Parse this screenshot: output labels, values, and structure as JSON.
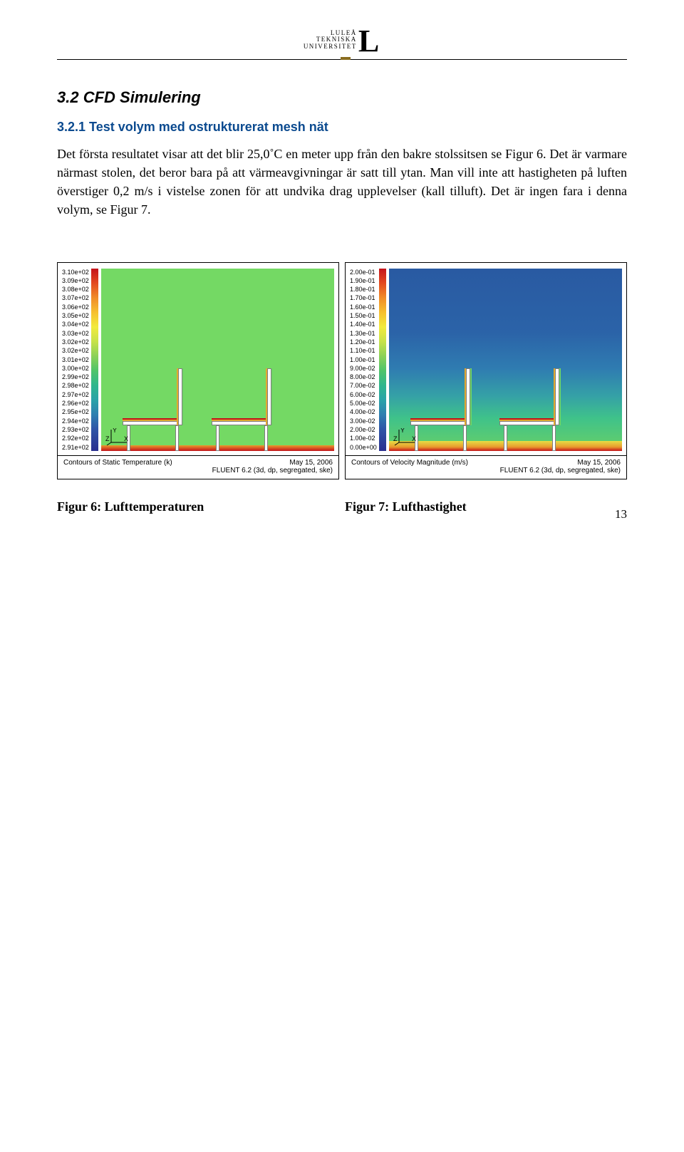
{
  "logo": {
    "line1": "LULEÅ",
    "line2": "TEKNISKA",
    "line3": "UNIVERSITET"
  },
  "section_heading": "3.2  CFD Simulering",
  "subsection_heading": "3.2.1 Test volym med ostrukturerat mesh nät",
  "body_text": "Det första resultatet visar att det blir 25,0˚C en meter upp från den bakre stolssitsen se Figur 6. Det är varmare närmast stolen, det beror bara på att värmeavgivningar är satt till ytan. Man vill inte att hastigheten på luften överstiger 0,2 m/s i vistelse zonen för att undvika drag upplevelser (kall tilluft). Det är ingen fara i denna volym, se Figur 7.",
  "figures": {
    "left": {
      "colorbar_labels": [
        "3.10e+02",
        "3.09e+02",
        "3.08e+02",
        "3.07e+02",
        "3.06e+02",
        "3.05e+02",
        "3.04e+02",
        "3.03e+02",
        "3.02e+02",
        "3.02e+02",
        "3.01e+02",
        "3.00e+02",
        "2.99e+02",
        "2.98e+02",
        "2.97e+02",
        "2.96e+02",
        "2.95e+02",
        "2.94e+02",
        "2.93e+02",
        "2.92e+02",
        "2.91e+02"
      ],
      "bg_color": "#74d964",
      "footer_left": "Contours of Static Temperature (k)",
      "footer_right_line1": "May 15, 2006",
      "footer_right_line2": "FLUENT 6.2 (3d, dp, segregated, ske)",
      "caption": "Figur 6: Lufttemperaturen"
    },
    "right": {
      "colorbar_labels": [
        "2.00e-01",
        "1.90e-01",
        "1.80e-01",
        "1.70e-01",
        "1.60e-01",
        "1.50e-01",
        "1.40e-01",
        "1.30e-01",
        "1.20e-01",
        "1.10e-01",
        "1.00e-01",
        "9.00e-02",
        "8.00e-02",
        "7.00e-02",
        "6.00e-02",
        "5.00e-02",
        "4.00e-02",
        "3.00e-02",
        "2.00e-02",
        "1.00e-02",
        "0.00e+00"
      ],
      "footer_left": "Contours of Velocity Magnitude (m/s)",
      "footer_right_line1": "May 15, 2006",
      "footer_right_line2": "FLUENT 6.2 (3d, dp, segregated, ske)",
      "caption": "Figur 7: Lufthastighet"
    }
  },
  "axes": {
    "y": "Y",
    "x": "X",
    "z": "Z"
  },
  "page_number": "13"
}
